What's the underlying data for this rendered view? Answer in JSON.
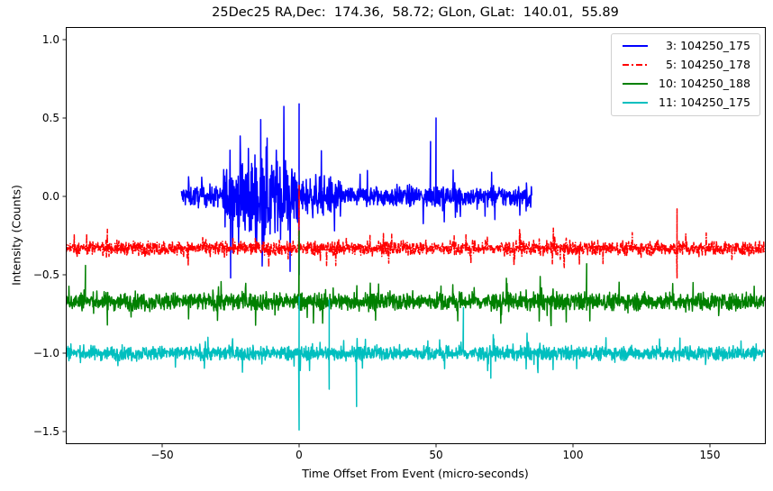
{
  "chart_data": {
    "type": "line",
    "title": "25Dec25 RA,Dec:  174.36,  58.72; GLon, GLat:  140.01,  55.89",
    "xlabel": "Time Offset From Event (micro-seconds)",
    "ylabel": "Intensity (Counts)",
    "xlim": [
      -85,
      170
    ],
    "ylim": [
      -1.57,
      1.07
    ],
    "xticks": [
      -50,
      0,
      50,
      100,
      150
    ],
    "xtick_labels": [
      "−50",
      "0",
      "50",
      "100",
      "150"
    ],
    "yticks": [
      1.0,
      0.5,
      0.0,
      -0.5,
      -1.0,
      -1.5
    ],
    "ytick_labels": [
      "1.0",
      "0.5",
      "0.0",
      "−0.5",
      "−1.0",
      "−1.5"
    ],
    "grid": false,
    "legend_position": "upper right",
    "series": [
      {
        "name": " 3: 104250_175",
        "color": "#0000ff",
        "linestyle": "solid",
        "x_range": [
          -43,
          85
        ],
        "baseline": 0.0,
        "noise_amplitude": 0.06,
        "burst_region": [
          -28,
          0
        ],
        "burst_amplitude": 0.28,
        "peak_events": [
          {
            "x": -14,
            "y": 0.49
          },
          {
            "x": 0,
            "y": 0.59
          },
          {
            "x": 48,
            "y": 0.35
          },
          {
            "x": 50,
            "y": 0.5
          },
          {
            "x": -25,
            "y": -0.52
          },
          {
            "x": 0,
            "y": -0.5
          }
        ]
      },
      {
        "name": " 5: 104250_178",
        "color": "#ff0000",
        "linestyle": "dashdot",
        "x_range": [
          -85,
          170
        ],
        "baseline": -0.33,
        "noise_amplitude": 0.04,
        "peak_events": [
          {
            "x": 0,
            "y": 0.07
          },
          {
            "x": 138,
            "y": -0.08
          },
          {
            "x": 138,
            "y": -0.52
          },
          {
            "x": -70,
            "y": -0.21
          }
        ]
      },
      {
        "name": "10: 104250_188",
        "color": "#008000",
        "linestyle": "solid",
        "x_range": [
          -85,
          170
        ],
        "baseline": -0.67,
        "noise_amplitude": 0.05,
        "peak_events": [
          {
            "x": -78,
            "y": -0.44
          },
          {
            "x": 0,
            "y": -0.22
          },
          {
            "x": 105,
            "y": -0.43
          },
          {
            "x": -70,
            "y": -0.82
          }
        ]
      },
      {
        "name": "11: 104250_175",
        "color": "#00bfbf",
        "linestyle": "solid",
        "x_range": [
          -85,
          170
        ],
        "baseline": -1.0,
        "noise_amplitude": 0.04,
        "peak_events": [
          {
            "x": 0,
            "y": -0.64
          },
          {
            "x": 0,
            "y": -1.49
          },
          {
            "x": 11,
            "y": -0.66
          },
          {
            "x": 11,
            "y": -1.23
          },
          {
            "x": 60,
            "y": -0.71
          },
          {
            "x": 70,
            "y": -1.16
          },
          {
            "x": 21,
            "y": -1.34
          }
        ]
      }
    ]
  },
  "legend": {
    "items": [
      {
        "label": "  3: 104250_175",
        "color": "#0000ff",
        "style": "solid"
      },
      {
        "label": "  5: 104250_178",
        "color": "#ff0000",
        "style": "dashdot"
      },
      {
        "label": "10: 104250_188",
        "color": "#008000",
        "style": "solid"
      },
      {
        "label": "11: 104250_175",
        "color": "#00bfbf",
        "style": "solid"
      }
    ]
  }
}
